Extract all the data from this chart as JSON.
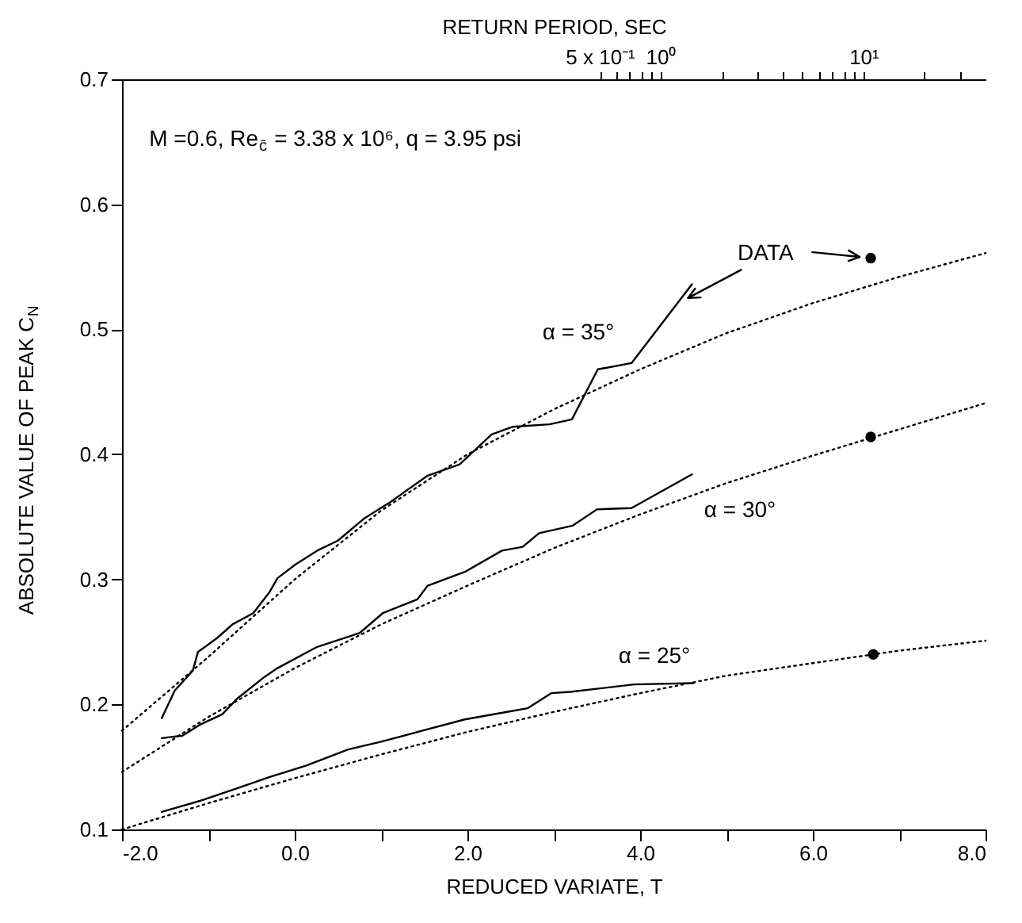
{
  "chart_data": {
    "type": "line",
    "xlabel": "REDUCED VARIATE, T",
    "ylabel": "ABSOLUTE VALUE OF PEAK C$_{N}$",
    "x2label": "RETURN PERIOD, SEC",
    "xlim": [
      -2,
      8
    ],
    "xticks": [
      {
        "value": -2,
        "label": "-2.0"
      },
      {
        "value": -1,
        "label": null
      },
      {
        "value": 0,
        "label": "0.0"
      },
      {
        "value": 1,
        "label": null
      },
      {
        "value": 2,
        "label": "2.0"
      },
      {
        "value": 3,
        "label": null
      },
      {
        "value": 4,
        "label": "4.0"
      },
      {
        "value": 5,
        "label": null
      },
      {
        "value": 6,
        "label": "6.0"
      },
      {
        "value": 7,
        "label": null
      },
      {
        "value": 8,
        "label": "8.0"
      }
    ],
    "ylim": [
      0.1,
      0.7
    ],
    "yticks": [
      0.1,
      0.2,
      0.3,
      0.4,
      0.5,
      0.6,
      0.7
    ],
    "x2lim": [
      0.0022,
      40
    ],
    "log": "x2",
    "x2ticks": [
      {
        "value": 0.5,
        "label": "5 x 10⁻¹"
      },
      {
        "value": 0.6,
        "label": null
      },
      {
        "value": 0.7,
        "label": null
      },
      {
        "value": 0.8,
        "label": null
      },
      {
        "value": 0.9,
        "label": null
      },
      {
        "value": 1,
        "label": "10⁰"
      },
      {
        "value": 2,
        "label": null
      },
      {
        "value": 3,
        "label": null
      },
      {
        "value": 4,
        "label": null
      },
      {
        "value": 5,
        "label": null
      },
      {
        "value": 6,
        "label": null
      },
      {
        "value": 7,
        "label": null
      },
      {
        "value": 8,
        "label": null
      },
      {
        "value": 9,
        "label": null
      },
      {
        "value": 10,
        "label": "10¹"
      },
      {
        "value": 20,
        "label": null
      },
      {
        "value": 30,
        "label": null
      }
    ],
    "series": [
      {
        "color": "#000000",
        "line_style": "solid",
        "marker": "none",
        "x": [
          -1.54,
          -1.39,
          -1.18,
          -1.12,
          -0.9,
          -0.72,
          -0.48,
          -0.29,
          -0.2,
          0.01,
          0.26,
          0.5,
          0.81,
          1.11,
          1.54,
          1.91,
          2.28,
          2.52,
          2.95,
          3.21,
          3.51,
          3.9,
          4.6
        ],
        "values": [
          0.189,
          0.211,
          0.227,
          0.242,
          0.253,
          0.264,
          0.273,
          0.29,
          0.301,
          0.312,
          0.323,
          0.331,
          0.349,
          0.362,
          0.383,
          0.392,
          0.416,
          0.422,
          0.424,
          0.428,
          0.468,
          0.473,
          0.536
        ]
      },
      {
        "color": "#000000",
        "line_style": "solid",
        "marker": "none",
        "x": [
          -1.54,
          -1.3,
          -1.09,
          -0.84,
          -0.66,
          -0.35,
          -0.2,
          0.26,
          0.75,
          1.02,
          1.42,
          1.54,
          1.97,
          2.4,
          2.64,
          2.83,
          3.22,
          3.5,
          3.9,
          4.6
        ],
        "values": [
          0.173,
          0.175,
          0.184,
          0.192,
          0.205,
          0.222,
          0.229,
          0.246,
          0.257,
          0.273,
          0.284,
          0.295,
          0.306,
          0.323,
          0.326,
          0.337,
          0.343,
          0.356,
          0.357,
          0.384
        ]
      },
      {
        "color": "#000000",
        "line_style": "solid",
        "marker": "none",
        "x": [
          -1.54,
          -1.09,
          -0.66,
          -0.29,
          0.13,
          0.62,
          0.99,
          1.48,
          1.97,
          2.46,
          2.7,
          2.97,
          3.19,
          3.93,
          4.62
        ],
        "values": [
          0.114,
          0.123,
          0.133,
          0.142,
          0.151,
          0.164,
          0.17,
          0.179,
          0.188,
          0.194,
          0.197,
          0.209,
          0.21,
          0.216,
          0.217
        ]
      },
      {
        "color": "#000000",
        "line_style": "dotted",
        "marker": "none",
        "x": [
          -2,
          -1,
          0,
          1,
          2,
          3,
          4,
          5,
          6,
          7,
          8
        ],
        "values": [
          0.179,
          0.238,
          0.3,
          0.355,
          0.4,
          0.436,
          0.468,
          0.497,
          0.521,
          0.542,
          0.561
        ]
      },
      {
        "color": "#000000",
        "line_style": "dotted",
        "marker": "none",
        "x": [
          -2,
          -1,
          0,
          1,
          2,
          3,
          4,
          5,
          6,
          7,
          8
        ],
        "values": [
          0.146,
          0.19,
          0.229,
          0.264,
          0.295,
          0.325,
          0.352,
          0.377,
          0.399,
          0.42,
          0.441
        ]
      },
      {
        "color": "#000000",
        "line_style": "dotted",
        "marker": "none",
        "x": [
          -2,
          -1,
          0,
          1,
          2,
          3,
          4,
          5,
          6,
          7,
          8
        ],
        "values": [
          0.1,
          0.121,
          0.141,
          0.16,
          0.178,
          0.194,
          0.209,
          0.223,
          0.233,
          0.243,
          0.251
        ]
      },
      {
        "type": "scatter",
        "color": "#000000",
        "marker": "circle",
        "x": [
          6.67,
          6.67,
          6.7
        ],
        "values": [
          0.557,
          0.414,
          0.24
        ]
      }
    ],
    "annotations": [
      "M =0.6, Re$_{c̄}$ = 3.38 x 10⁶, q = 3.95 psi",
      {
        "text": "DATA",
        "x": 4.48,
        "y": 0.525
      },
      "α = 35°",
      "α = 30°",
      "α = 25°"
    ]
  }
}
